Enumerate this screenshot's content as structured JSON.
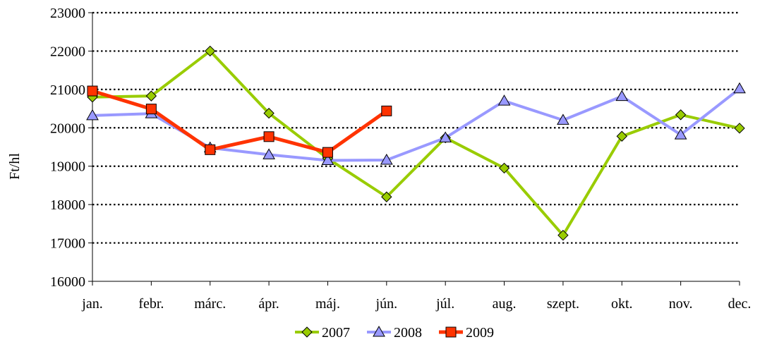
{
  "chart_data": {
    "type": "line",
    "title": "",
    "xlabel": "",
    "ylabel": "Ft/hl",
    "categories": [
      "jan.",
      "febr.",
      "márc.",
      "ápr.",
      "máj.",
      "jún.",
      "júl.",
      "aug.",
      "szept.",
      "okt.",
      "nov.",
      "dec."
    ],
    "ylim": [
      16000,
      23000
    ],
    "yticks": [
      16000,
      17000,
      18000,
      19000,
      20000,
      21000,
      22000,
      23000
    ],
    "grid": "horizontal dotted",
    "legend_position": "bottom",
    "series": [
      {
        "name": "2007",
        "marker": "diamond",
        "color": "#99cc00",
        "values": [
          20800,
          20830,
          22000,
          20380,
          19200,
          18200,
          19740,
          18950,
          17200,
          19780,
          20340,
          19990
        ]
      },
      {
        "name": "2008",
        "marker": "triangle",
        "color": "#9999ff",
        "values": [
          20320,
          20370,
          19480,
          19300,
          19150,
          19160,
          19740,
          20700,
          20200,
          20820,
          19820,
          21020
        ]
      },
      {
        "name": "2009",
        "marker": "square",
        "color": "#ff3300",
        "values": [
          20960,
          20490,
          19430,
          19770,
          19360,
          20440,
          null,
          null,
          null,
          null,
          null,
          null
        ]
      }
    ]
  }
}
